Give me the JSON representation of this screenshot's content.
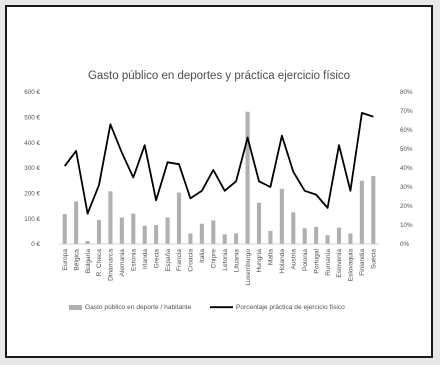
{
  "chart_data": {
    "type": "bar+line",
    "title": "Gasto público en deportes y práctica ejercicio físico",
    "categories": [
      "Europa",
      "Bélgica",
      "Bulgaria",
      "R. Checa",
      "Dinamarca",
      "Alemania",
      "Estonia",
      "Irlanda",
      "Grecia",
      "España",
      "Francia",
      "Croacia",
      "Italia",
      "Chipre",
      "Letonia",
      "Lituania",
      "Luxemburgo",
      "Hungría",
      "Malta",
      "Holanda",
      "Austria",
      "Polonia",
      "Portugal",
      "Rumanía",
      "Eslovenia",
      "Eslovaquia",
      "Finlandia",
      "Suecia"
    ],
    "series": [
      {
        "name": "Gasto público en deporte / habitante",
        "type": "bar",
        "axis": "left",
        "color": "#b0b0b0",
        "values": [
          118,
          168,
          12,
          95,
          208,
          105,
          120,
          72,
          75,
          105,
          203,
          42,
          80,
          93,
          38,
          42,
          522,
          163,
          52,
          218,
          125,
          62,
          68,
          35,
          65,
          42,
          250,
          268
        ]
      },
      {
        "name": "Porcentaje práctica de ejercicio físico",
        "type": "line",
        "axis": "right",
        "color": "#000000",
        "values": [
          41,
          49,
          16,
          31,
          63,
          48,
          35,
          52,
          23,
          43,
          42,
          24,
          28,
          39,
          28,
          33,
          56,
          33,
          30,
          57,
          38,
          28,
          26,
          19,
          52,
          28,
          69,
          67
        ]
      }
    ],
    "y_left": {
      "min": 0,
      "max": 600,
      "step": 100,
      "tick_labels": [
        "0 €",
        "100 €",
        "200 €",
        "300 €",
        "400 €",
        "500 €",
        "600 €"
      ]
    },
    "y_right": {
      "min": 0,
      "max": 80,
      "step": 10,
      "tick_labels": [
        "0%",
        "10%",
        "20%",
        "30%",
        "40%",
        "50%",
        "60%",
        "70%",
        "80%"
      ]
    },
    "legend_position": "bottom",
    "grid": false
  }
}
